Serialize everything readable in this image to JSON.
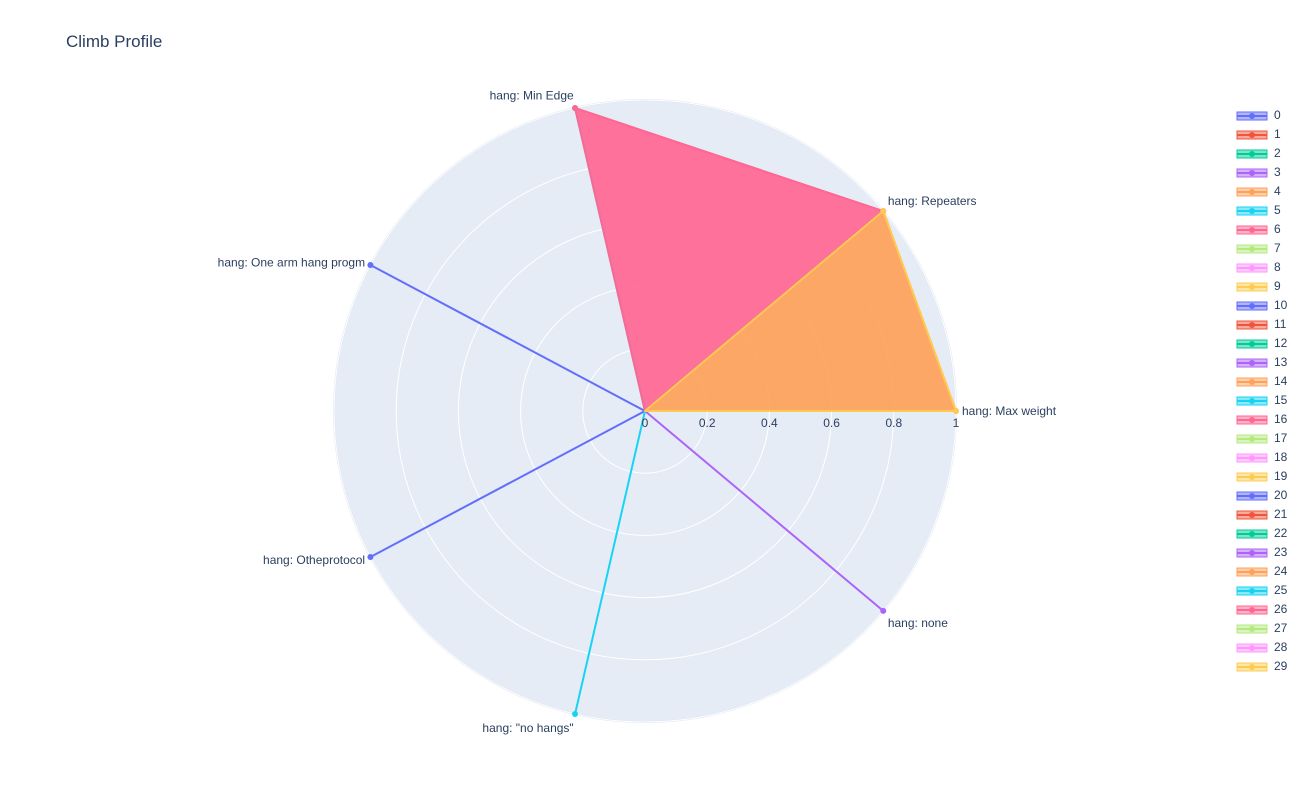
{
  "title": "Climb Profile",
  "colors": {
    "palette": [
      "#636efa",
      "#EF553B",
      "#00cc96",
      "#ab63fa",
      "#FFA15A",
      "#19d3f3",
      "#FF6692",
      "#B6E880",
      "#FF97FF",
      "#FECB52"
    ],
    "polar_bg": "#e5ecf6",
    "grid": "#ffffff"
  },
  "legend_items": [
    "0",
    "1",
    "2",
    "3",
    "4",
    "5",
    "6",
    "7",
    "8",
    "9",
    "10",
    "11",
    "12",
    "13",
    "14",
    "15",
    "16",
    "17",
    "18",
    "19",
    "20",
    "21",
    "22",
    "23",
    "24",
    "25",
    "26",
    "27",
    "28",
    "29"
  ],
  "chart_data": {
    "type": "radar",
    "title": "Climb Profile",
    "theta": [
      "hang: Max weight",
      "hang: Repeaters",
      "hang: Min Edge",
      "hang: One arm hang progm",
      "hang: Otheprotocol",
      "hang: \"no hangs\"",
      "hang: none"
    ],
    "theta_angles_deg": [
      0,
      40,
      103,
      152,
      208,
      257,
      320
    ],
    "radial_range": [
      0,
      1
    ],
    "radial_ticks": [
      "0",
      "0.2",
      "0.4",
      "0.6",
      "0.8",
      "1"
    ],
    "radial_tick_values": [
      0,
      0.2,
      0.4,
      0.6,
      0.8,
      1
    ],
    "legend_position": "right",
    "series": [
      {
        "name": "0",
        "color_index": 0,
        "fill": false,
        "r": [
          0,
          0,
          0,
          1,
          0,
          0,
          0
        ]
      },
      {
        "name": "0",
        "color_index": 0,
        "fill": false,
        "r": [
          0,
          0,
          0,
          0,
          1,
          0,
          0
        ]
      },
      {
        "name": "3",
        "color_index": 3,
        "fill": false,
        "r": [
          0,
          0,
          0,
          0,
          0,
          0,
          1
        ]
      },
      {
        "name": "5",
        "color_index": 5,
        "fill": false,
        "r": [
          0,
          0,
          1,
          0,
          0,
          1,
          0
        ]
      },
      {
        "name": "4",
        "color_index": 4,
        "fill": true,
        "r": [
          1,
          1,
          0,
          0,
          0,
          0,
          0
        ]
      },
      {
        "name": "6",
        "color_index": 6,
        "fill": true,
        "r": [
          0,
          1,
          1,
          0,
          0,
          0,
          0
        ]
      },
      {
        "name": "9",
        "color_index": 9,
        "fill": false,
        "r": [
          1,
          1,
          0,
          0,
          0,
          0,
          0
        ]
      }
    ]
  }
}
